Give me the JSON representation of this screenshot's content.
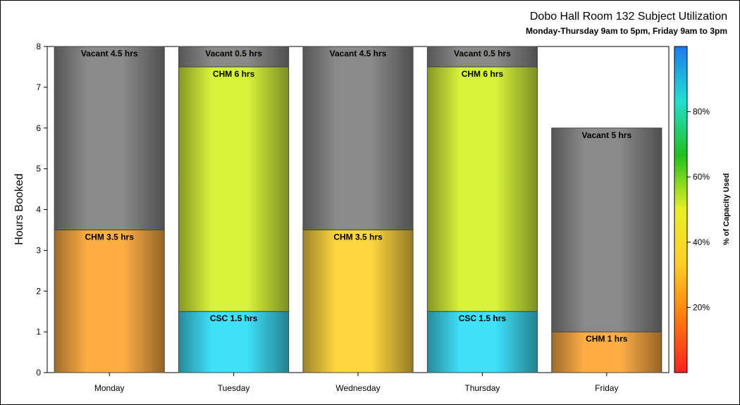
{
  "chart_data": {
    "type": "bar",
    "stacked": true,
    "title": "Dobo Hall Room 132 Subject Utilization",
    "subtitle": "Monday-Thursday 9am to 5pm, Friday 9am to 3pm",
    "ylabel": "Hours Booked",
    "xlabel": "",
    "ylim": [
      0,
      8
    ],
    "yticks": [
      0,
      1,
      2,
      3,
      4,
      5,
      6,
      7,
      8
    ],
    "categories": [
      "Monday",
      "Tuesday",
      "Wednesday",
      "Thursday",
      "Friday"
    ],
    "bars": [
      {
        "category": "Monday",
        "segments": [
          {
            "label": "CHM 3.5 hrs",
            "value": 3.5,
            "color": "#FFAE44"
          },
          {
            "label": "Vacant 4.5 hrs",
            "value": 4.5,
            "color": "#8A8A8A"
          }
        ]
      },
      {
        "category": "Tuesday",
        "segments": [
          {
            "label": "CSC 1.5 hrs",
            "value": 1.5,
            "color": "#3EE0FA"
          },
          {
            "label": "CHM 6 hrs",
            "value": 6,
            "color": "#D8F43A"
          },
          {
            "label": "Vacant 0.5 hrs",
            "value": 0.5,
            "color": "#8A8A8A"
          }
        ]
      },
      {
        "category": "Wednesday",
        "segments": [
          {
            "label": "CHM 3.5 hrs",
            "value": 3.5,
            "color": "#FFD640"
          },
          {
            "label": "Vacant 4.5 hrs",
            "value": 4.5,
            "color": "#8A8A8A"
          }
        ]
      },
      {
        "category": "Thursday",
        "segments": [
          {
            "label": "CSC 1.5 hrs",
            "value": 1.5,
            "color": "#3EE0FA"
          },
          {
            "label": "CHM 6 hrs",
            "value": 6,
            "color": "#D8F43A"
          },
          {
            "label": "Vacant 0.5 hrs",
            "value": 0.5,
            "color": "#8A8A8A"
          }
        ]
      },
      {
        "category": "Friday",
        "segments": [
          {
            "label": "CHM 1 hrs",
            "value": 1,
            "color": "#FFAE44"
          },
          {
            "label": "Vacant 5 hrs",
            "value": 5,
            "color": "#8A8A8A"
          }
        ]
      }
    ],
    "colorbar": {
      "label": "% of Capacity Used",
      "range": [
        0,
        100
      ],
      "ticks": [
        20,
        40,
        60,
        80
      ],
      "tick_labels": [
        "20%",
        "40%",
        "60%",
        "80%"
      ],
      "stops": [
        "#FF2020",
        "#FF7A10",
        "#FFD020",
        "#E8F020",
        "#20C020",
        "#20E0D0",
        "#1E7AEE"
      ]
    },
    "legend": "none",
    "grid": false
  }
}
